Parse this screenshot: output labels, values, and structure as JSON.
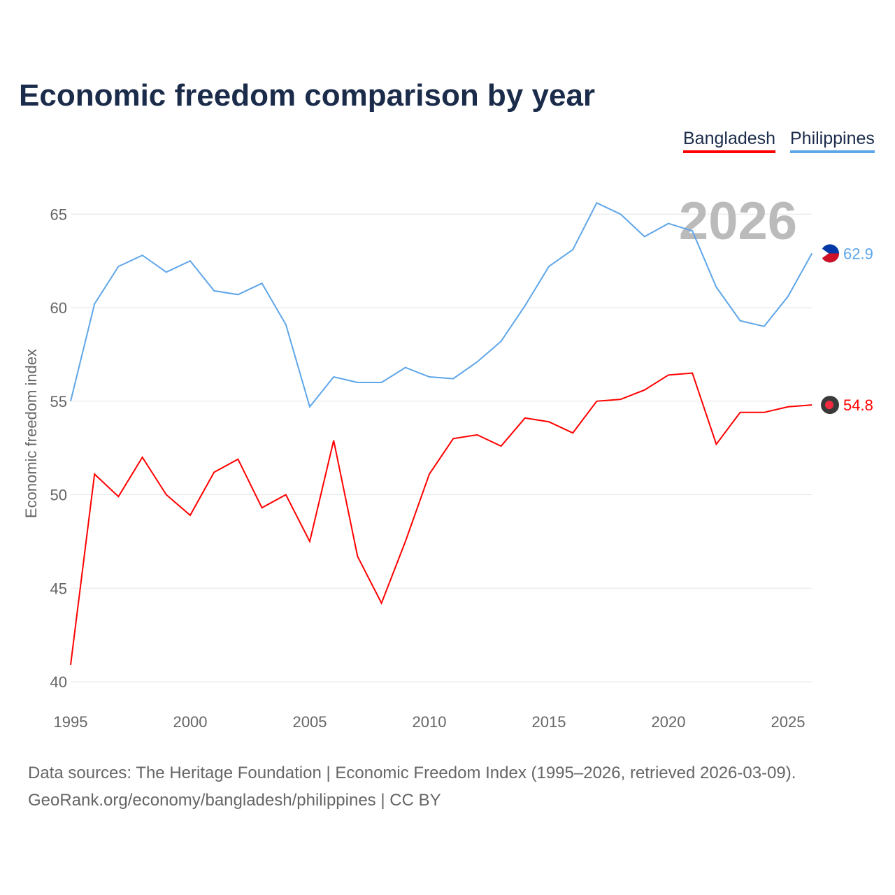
{
  "chart_data": {
    "type": "line",
    "title": "Economic freedom comparison by year",
    "xlabel": "",
    "ylabel": "Economic freedom index",
    "xlim": [
      1995,
      2026
    ],
    "ylim": [
      40,
      66.5
    ],
    "x_ticks": [
      1995,
      2000,
      2005,
      2010,
      2015,
      2020,
      2025
    ],
    "y_ticks": [
      40,
      45,
      50,
      55,
      60,
      65
    ],
    "grid": true,
    "legend_position": "top-right",
    "year_label": "2026",
    "x": [
      1995,
      1996,
      1997,
      1998,
      1999,
      2000,
      2001,
      2002,
      2003,
      2004,
      2005,
      2006,
      2007,
      2008,
      2009,
      2010,
      2011,
      2012,
      2013,
      2014,
      2015,
      2016,
      2017,
      2018,
      2019,
      2020,
      2021,
      2022,
      2023,
      2024,
      2025,
      2026
    ],
    "series": [
      {
        "name": "Bangladesh",
        "color": "#ff0000",
        "end_label": "54.8",
        "values": [
          40.9,
          51.1,
          49.9,
          52.0,
          50.0,
          48.9,
          51.2,
          51.9,
          49.3,
          50.0,
          47.5,
          52.9,
          46.7,
          44.2,
          47.5,
          51.1,
          53.0,
          53.2,
          52.6,
          54.1,
          53.9,
          53.3,
          55.0,
          55.1,
          55.6,
          56.4,
          56.5,
          52.7,
          54.4,
          54.4,
          54.7,
          54.8
        ]
      },
      {
        "name": "Philippines",
        "color": "#5ea6ea",
        "end_label": "62.9",
        "values": [
          55.0,
          60.2,
          62.2,
          62.8,
          61.9,
          62.5,
          60.9,
          60.7,
          61.3,
          59.1,
          54.7,
          56.3,
          56.0,
          56.0,
          56.8,
          56.3,
          56.2,
          57.1,
          58.2,
          60.1,
          62.2,
          63.1,
          65.6,
          65.0,
          63.8,
          64.5,
          64.1,
          61.1,
          59.3,
          59.0,
          60.6,
          62.9
        ]
      }
    ]
  },
  "footer": {
    "line1": "Data sources: The Heritage Foundation | Economic Freedom Index (1995–2026, retrieved 2026-03-09).",
    "line2": "GeoRank.org/economy/bangladesh/philippines | CC BY"
  }
}
